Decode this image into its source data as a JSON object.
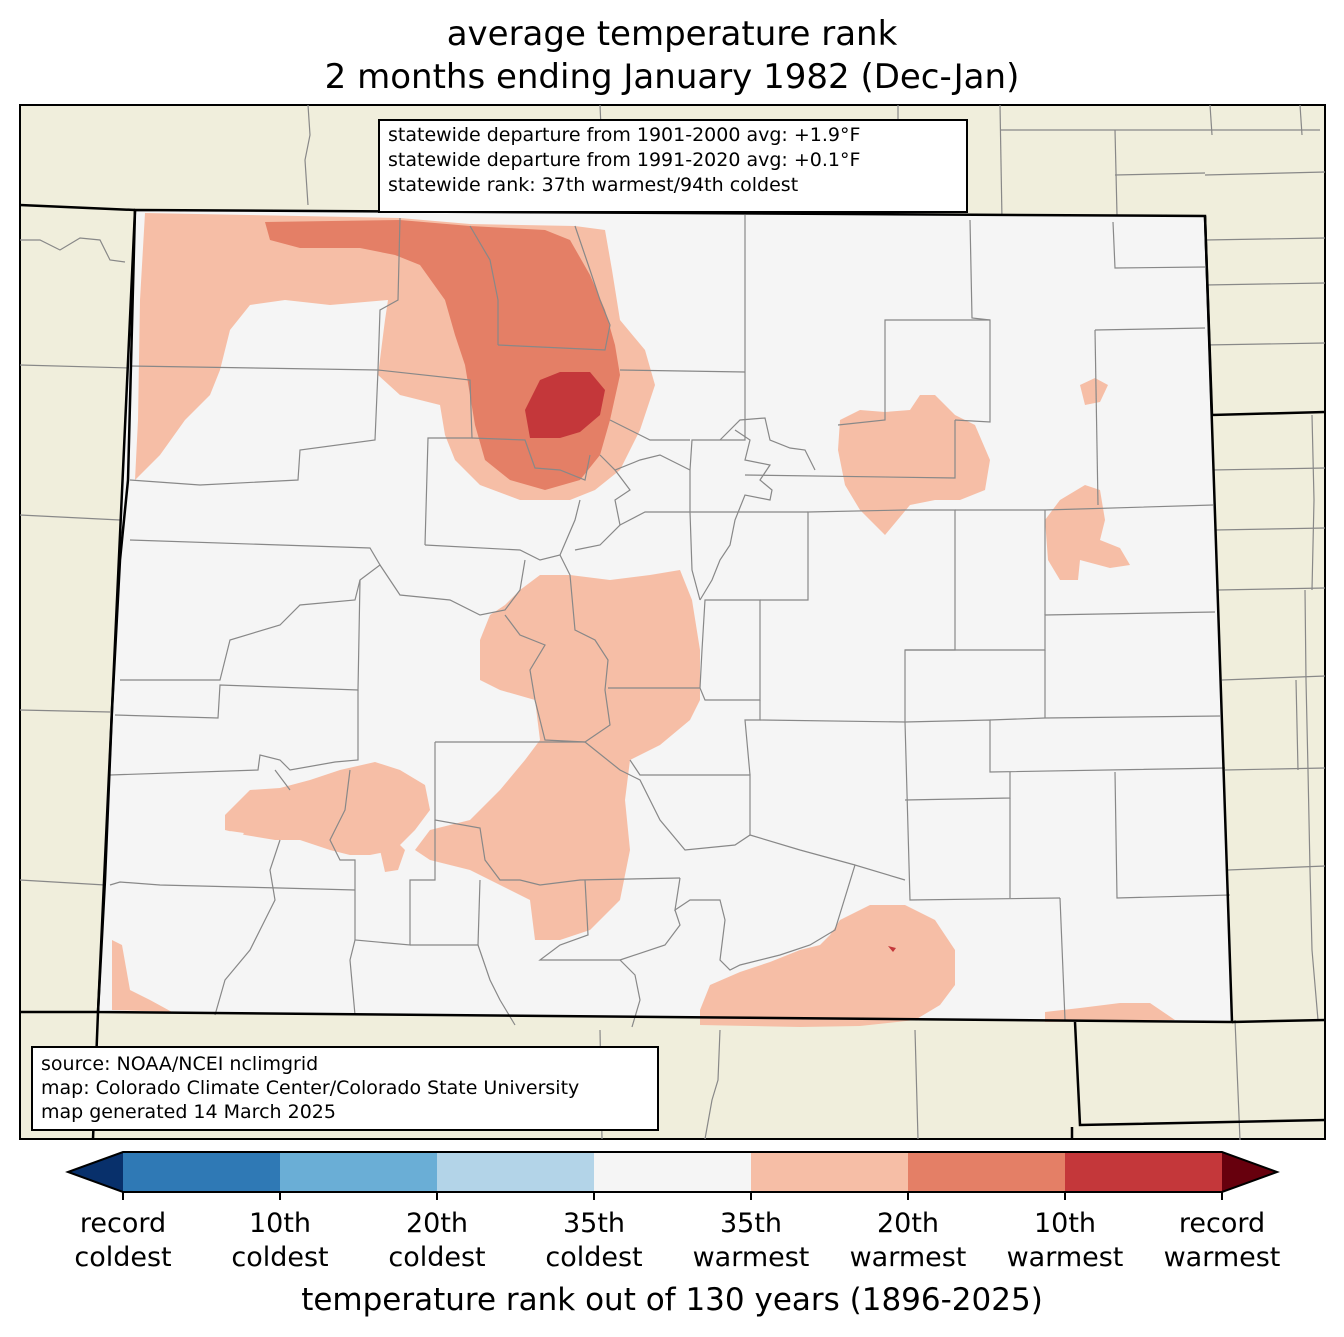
{
  "title": {
    "line1": "average temperature rank",
    "line2": "2 months ending January 1982 (Dec-Jan)"
  },
  "stats": {
    "line1": "statewide departure from 1901-2000 avg: +1.9°F",
    "line2": "statewide departure from 1991-2020 avg: +0.1°F",
    "line3": "statewide rank: 37th warmest/94th coldest"
  },
  "source": {
    "line1": "source: NOAA/NCEI nclimgrid",
    "line2": "map: Colorado Climate Center/Colorado State University",
    "line3": "map generated 14 March 2025"
  },
  "colorbar": {
    "title": "temperature rank out of 130 years (1896-2025)",
    "ticks": [
      {
        "top": "record",
        "bottom": "coldest"
      },
      {
        "top": "10th",
        "bottom": "coldest"
      },
      {
        "top": "20th",
        "bottom": "coldest"
      },
      {
        "top": "35th",
        "bottom": "coldest"
      },
      {
        "top": "35th",
        "bottom": "warmest"
      },
      {
        "top": "20th",
        "bottom": "warmest"
      },
      {
        "top": "10th",
        "bottom": "warmest"
      },
      {
        "top": "record",
        "bottom": "warmest"
      }
    ],
    "colors": {
      "below_record_coldest": "#08306b",
      "record_to_10th_coldest": "#2f79b5",
      "10th_to_20th_coldest": "#6aaed6",
      "20th_to_35th_coldest": "#b3d4e8",
      "near_normal": "#f5f5f5",
      "35th_to_20th_warmest": "#f6bea6",
      "20th_to_10th_warmest": "#e47f66",
      "10th_to_record_warmest": "#c4373a",
      "above_record_warmest": "#67000d"
    }
  },
  "map_colors": {
    "background_land": "#f0eedc",
    "county_lines": "#888888",
    "state_lines": "#000000"
  }
}
